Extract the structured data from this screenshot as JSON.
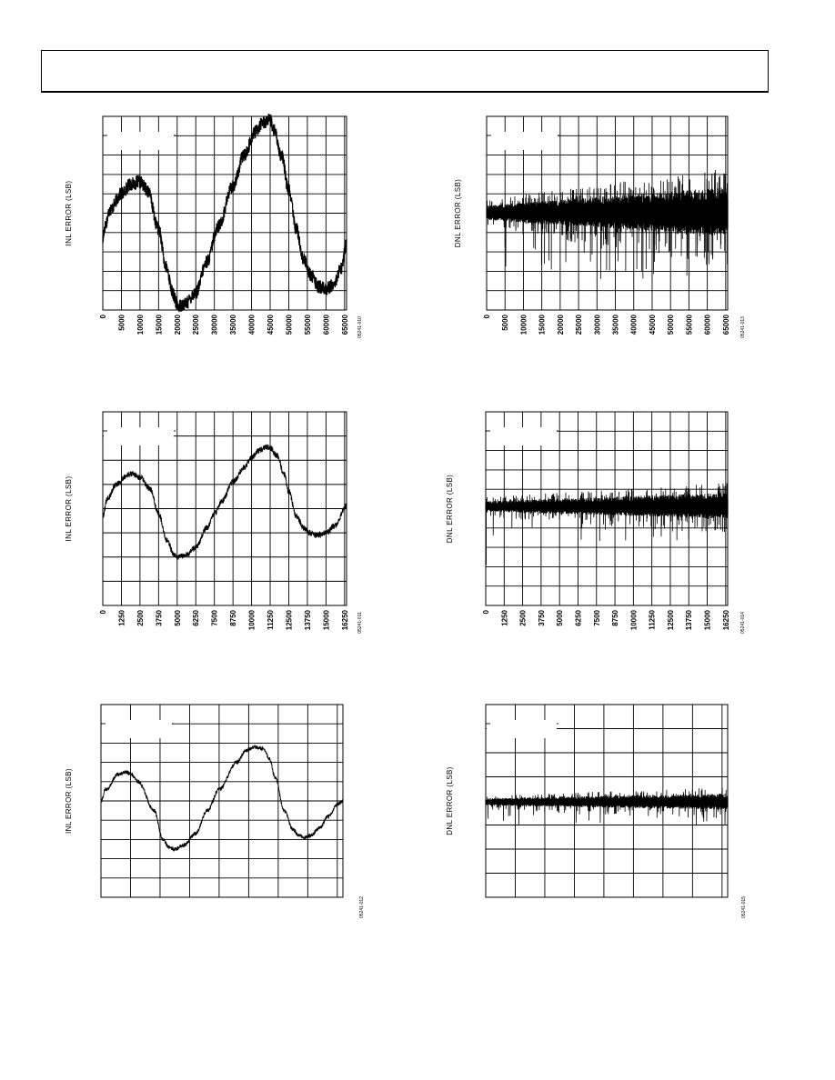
{
  "header": {
    "text": ""
  },
  "chart_data": [
    {
      "id": "c1",
      "type": "line",
      "ylabel": "INL ERROR (LSB)",
      "figure_code": "05241-010",
      "xlim": [
        0,
        65535
      ],
      "xticks": [
        "0",
        "5000",
        "10000",
        "15000",
        "20000",
        "25000",
        "30000",
        "35000",
        "40000",
        "45000",
        "50000",
        "55000",
        "60000",
        "65000"
      ],
      "xtick_values": [
        0,
        5000,
        10000,
        15000,
        20000,
        25000,
        30000,
        35000,
        40000,
        45000,
        50000,
        55000,
        60000,
        65000
      ],
      "ygrid": 10,
      "noise": 0.35,
      "stroke": 1.2,
      "x": [
        0,
        500,
        2000,
        5000,
        7500,
        10000,
        12000,
        15000,
        17000,
        19000,
        20000,
        22000,
        25000,
        28000,
        31000,
        35000,
        38000,
        41000,
        43000,
        45000,
        46000,
        48000,
        50000,
        52000,
        54000,
        56000,
        58000,
        60000,
        62000,
        64000,
        65535
      ],
      "y": [
        3.6,
        4.3,
        5.2,
        6.0,
        6.5,
        6.6,
        6.2,
        4.2,
        2.2,
        0.8,
        0.2,
        0.3,
        0.9,
        2.5,
        4.3,
        6.4,
        8.0,
        9.2,
        9.7,
        9.8,
        9.3,
        8.0,
        6.2,
        4.2,
        2.6,
        1.8,
        1.2,
        1.1,
        1.3,
        2.1,
        3.4
      ]
    },
    {
      "id": "c2",
      "type": "line",
      "ylabel": "DNL ERROR (LSB)",
      "figure_code": "05241-013",
      "xlim": [
        0,
        65535
      ],
      "xticks": [
        "0",
        "5000",
        "10000",
        "15000",
        "20000",
        "25000",
        "30000",
        "35000",
        "40000",
        "45000",
        "50000",
        "55000",
        "60000",
        "65000"
      ],
      "xtick_values": [
        0,
        5000,
        10000,
        15000,
        20000,
        25000,
        30000,
        35000,
        40000,
        45000,
        50000,
        55000,
        60000,
        65000
      ],
      "ygrid": 10,
      "style": "dnl",
      "baseline": 5.0,
      "amp_start": 0.5,
      "amp_end": 1.7,
      "dip": 1.7,
      "dense": 1300
    },
    {
      "id": "c3",
      "type": "line",
      "ylabel": "INL ERROR (LSB)",
      "figure_code": "05241-011",
      "xlim": [
        0,
        16383
      ],
      "xticks": [
        "0",
        "1250",
        "2500",
        "3750",
        "5000",
        "6250",
        "7500",
        "8750",
        "10000",
        "11250",
        "12500",
        "13750",
        "15000",
        "16250"
      ],
      "xtick_values": [
        0,
        1250,
        2500,
        3750,
        5000,
        6250,
        7500,
        8750,
        10000,
        11250,
        12500,
        13750,
        15000,
        16250
      ],
      "ygrid": 8,
      "noise": 0.12,
      "stroke": 0.9,
      "x": [
        0,
        300,
        900,
        1700,
        2000,
        2500,
        3200,
        3750,
        4300,
        4800,
        5000,
        5500,
        6250,
        7000,
        7500,
        8000,
        8750,
        9500,
        10000,
        10500,
        11000,
        11250,
        11700,
        12200,
        12500,
        13000,
        13500,
        13900,
        14400,
        15000,
        15600,
        16383
      ],
      "y": [
        3.7,
        4.4,
        5.0,
        5.4,
        5.45,
        5.3,
        4.8,
        3.8,
        2.7,
        2.1,
        2.0,
        2.05,
        2.4,
        3.2,
        3.8,
        4.3,
        5.1,
        5.7,
        6.1,
        6.4,
        6.55,
        6.5,
        6.2,
        5.4,
        4.7,
        3.7,
        3.2,
        3.0,
        2.9,
        3.0,
        3.3,
        4.1
      ]
    },
    {
      "id": "c4",
      "type": "line",
      "ylabel": "DNL ERROR (LSB)",
      "figure_code": "05241-014",
      "xlim": [
        0,
        16383
      ],
      "xticks": [
        "0",
        "1250",
        "2500",
        "3750",
        "5000",
        "6250",
        "7500",
        "8750",
        "10000",
        "11250",
        "12500",
        "13750",
        "15000",
        "16250"
      ],
      "xtick_values": [
        0,
        1250,
        2500,
        3750,
        5000,
        6250,
        7500,
        8750,
        10000,
        11250,
        12500,
        13750,
        15000,
        16250
      ],
      "ygrid": 10,
      "style": "dnl",
      "baseline": 5.1,
      "amp_start": 0.35,
      "amp_end": 0.9,
      "dip": 0.9,
      "dense": 1100,
      "start_spike": 3.0
    },
    {
      "id": "c5",
      "type": "line",
      "ylabel": "INL ERROR (LSB)",
      "figure_code": "05241-012",
      "xlim": [
        0,
        4095
      ],
      "xticks": [],
      "xtick_values": [],
      "xgrid_positions": [
        0,
        500,
        1000,
        1500,
        2000,
        2500,
        3000,
        3500,
        4000
      ],
      "ygrid": 10,
      "noise": 0.1,
      "stroke": 0.9,
      "x": [
        0,
        80,
        300,
        430,
        500,
        630,
        900,
        1050,
        1150,
        1250,
        1400,
        1600,
        1800,
        2000,
        2300,
        2450,
        2600,
        2750,
        2850,
        2950,
        3100,
        3250,
        3350,
        3450,
        3550,
        3700,
        3850,
        4000,
        4095
      ],
      "y": [
        5.0,
        5.6,
        6.4,
        6.5,
        6.4,
        6.0,
        4.5,
        3.0,
        2.6,
        2.5,
        2.7,
        3.3,
        4.5,
        5.6,
        7.0,
        7.6,
        7.8,
        7.7,
        7.2,
        6.2,
        4.5,
        3.5,
        3.2,
        3.1,
        3.2,
        3.6,
        4.2,
        4.8,
        5.0
      ]
    },
    {
      "id": "c6",
      "type": "line",
      "ylabel": "DNL ERROR (LSB)",
      "figure_code": "05241-015",
      "xlim": [
        0,
        4095
      ],
      "xticks": [],
      "xtick_values": [],
      "xgrid_positions": [
        0,
        500,
        1000,
        1500,
        2000,
        2500,
        3000,
        3500,
        4000
      ],
      "ygrid": 8,
      "style": "dnl",
      "baseline": 3.95,
      "amp_start": 0.2,
      "amp_end": 0.45,
      "dip": 0.5,
      "dense": 900
    }
  ]
}
